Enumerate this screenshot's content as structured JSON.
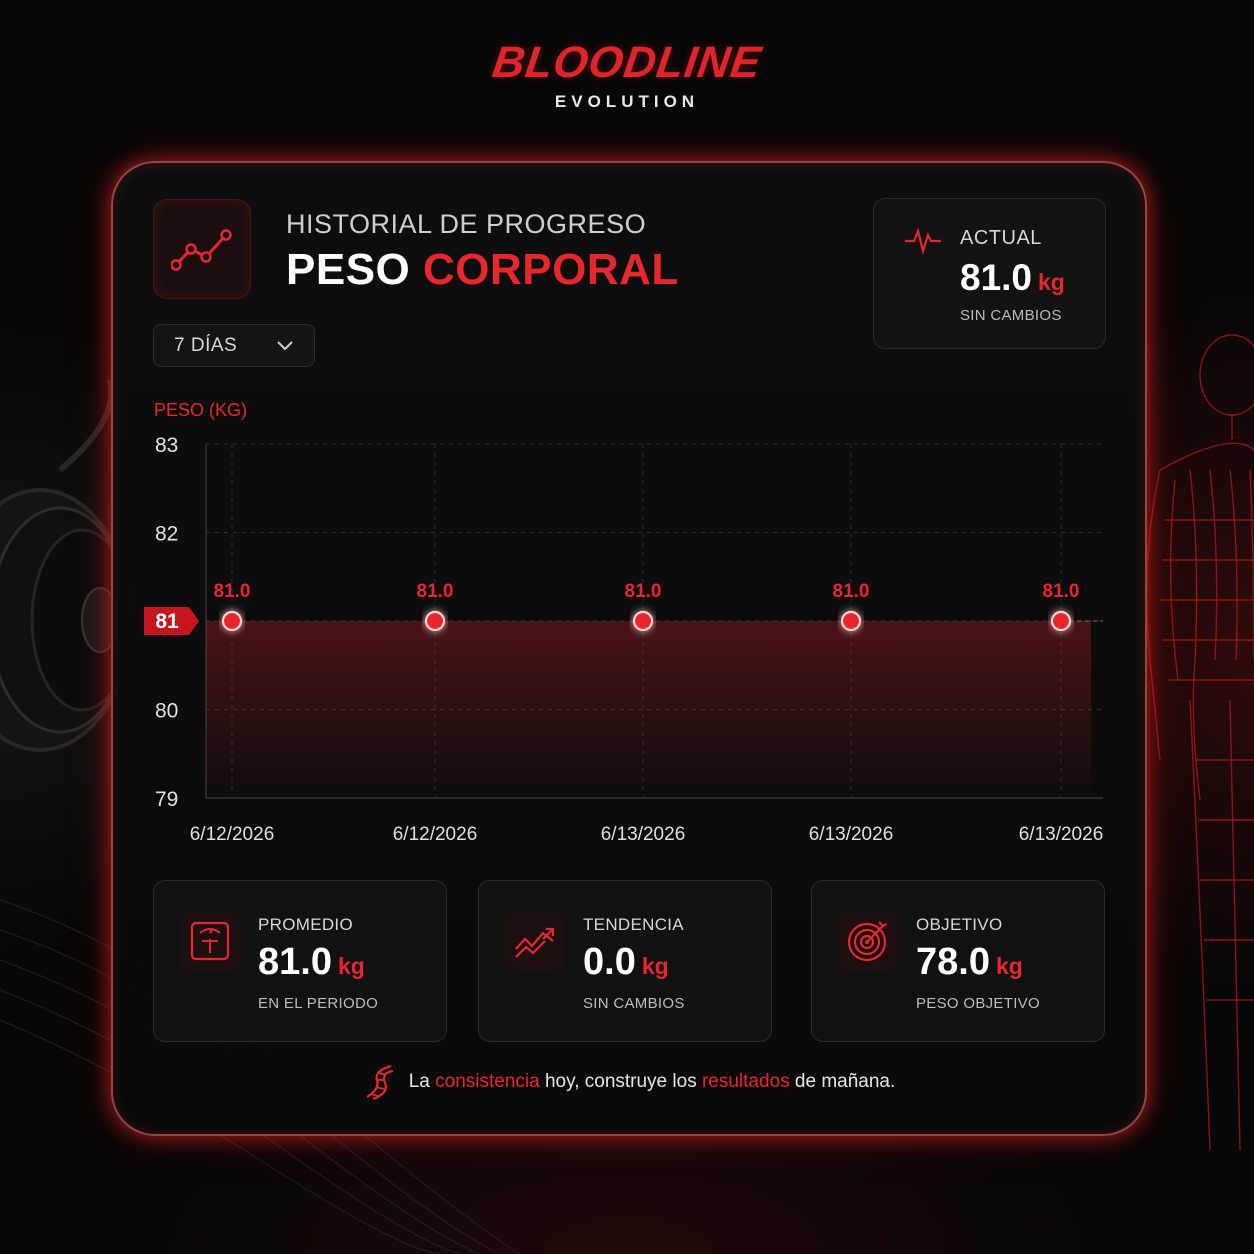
{
  "brand": {
    "name": "BLOODLINE",
    "sub": "EVOLUTION"
  },
  "header": {
    "subtitle": "HISTORIAL DE PROGRESO",
    "title_part1": "PESO",
    "title_part2": "CORPORAL"
  },
  "filter": {
    "selected": "7 DÍAS"
  },
  "current": {
    "label": "ACTUAL",
    "value": "81.0",
    "unit": "kg",
    "status": "SIN CAMBIOS"
  },
  "chart_data": {
    "type": "line",
    "ylabel": "PESO (KG)",
    "ylim": [
      79,
      83
    ],
    "yticks": [
      79,
      80,
      81,
      82,
      83
    ],
    "highlight_tick": 81,
    "x": [
      "6/12/2026",
      "6/12/2026",
      "6/13/2026",
      "6/13/2026",
      "6/13/2026"
    ],
    "values": [
      81.0,
      81.0,
      81.0,
      81.0,
      81.0
    ],
    "data_labels": [
      "81.0",
      "81.0",
      "81.0",
      "81.0",
      "81.0"
    ],
    "grid": true,
    "color": "#e8272d"
  },
  "stats": [
    {
      "label": "PROMEDIO",
      "value": "81.0",
      "unit": "kg",
      "caption": "EN EL PERIODO",
      "icon": "scale-icon"
    },
    {
      "label": "TENDENCIA",
      "value": "0.0",
      "unit": "kg",
      "caption": "SIN CAMBIOS",
      "icon": "trend-arrow-icon"
    },
    {
      "label": "OBJETIVO",
      "value": "78.0",
      "unit": "kg",
      "caption": "PESO OBJETIVO",
      "icon": "target-icon"
    }
  ],
  "footer": {
    "p1": "La ",
    "h1": "consistencia",
    "p2": " hoy, construye los ",
    "h2": "resultados",
    "p3": " de mañana."
  },
  "colors": {
    "accent": "#e8272d",
    "background": "#070707",
    "card": "#0e0e0e"
  }
}
